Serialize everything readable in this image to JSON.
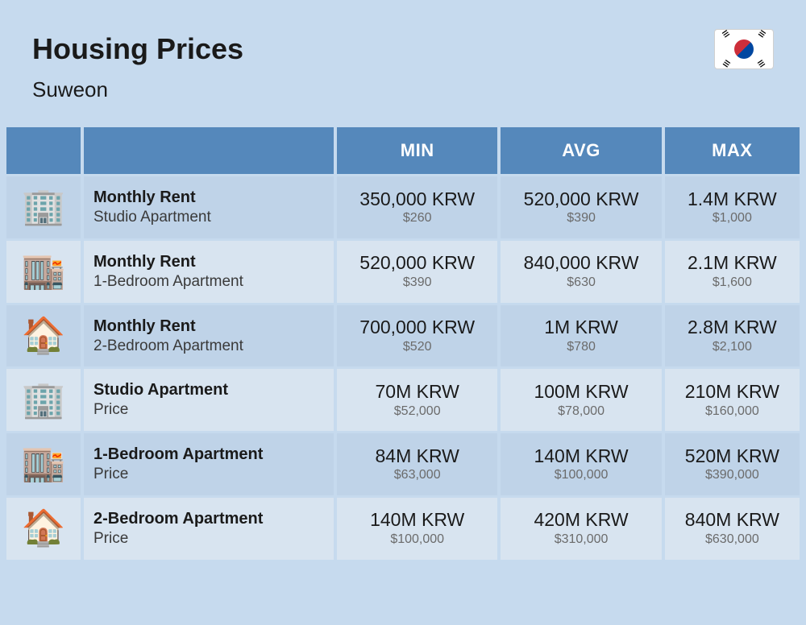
{
  "header": {
    "title": "Housing Prices",
    "subtitle": "Suweon",
    "country": "South Korea"
  },
  "table": {
    "columns": [
      "MIN",
      "AVG",
      "MAX"
    ],
    "rows": [
      {
        "icon": "studio",
        "title": "Monthly Rent",
        "subtitle": "Studio Apartment",
        "min": {
          "krw": "350,000 KRW",
          "usd": "$260"
        },
        "avg": {
          "krw": "520,000 KRW",
          "usd": "$390"
        },
        "max": {
          "krw": "1.4M KRW",
          "usd": "$1,000"
        }
      },
      {
        "icon": "onebed",
        "title": "Monthly Rent",
        "subtitle": "1-Bedroom Apartment",
        "min": {
          "krw": "520,000 KRW",
          "usd": "$390"
        },
        "avg": {
          "krw": "840,000 KRW",
          "usd": "$630"
        },
        "max": {
          "krw": "2.1M KRW",
          "usd": "$1,600"
        }
      },
      {
        "icon": "twobed",
        "title": "Monthly Rent",
        "subtitle": "2-Bedroom Apartment",
        "min": {
          "krw": "700,000 KRW",
          "usd": "$520"
        },
        "avg": {
          "krw": "1M KRW",
          "usd": "$780"
        },
        "max": {
          "krw": "2.8M KRW",
          "usd": "$2,100"
        }
      },
      {
        "icon": "studio",
        "title": "Studio Apartment",
        "subtitle": "Price",
        "min": {
          "krw": "70M KRW",
          "usd": "$52,000"
        },
        "avg": {
          "krw": "100M KRW",
          "usd": "$78,000"
        },
        "max": {
          "krw": "210M KRW",
          "usd": "$160,000"
        }
      },
      {
        "icon": "onebed",
        "title": "1-Bedroom Apartment",
        "subtitle": "Price",
        "min": {
          "krw": "84M KRW",
          "usd": "$63,000"
        },
        "avg": {
          "krw": "140M KRW",
          "usd": "$100,000"
        },
        "max": {
          "krw": "520M KRW",
          "usd": "$390,000"
        }
      },
      {
        "icon": "twobed",
        "title": "2-Bedroom Apartment",
        "subtitle": "Price",
        "min": {
          "krw": "140M KRW",
          "usd": "$100,000"
        },
        "avg": {
          "krw": "420M KRW",
          "usd": "$310,000"
        },
        "max": {
          "krw": "840M KRW",
          "usd": "$630,000"
        }
      }
    ]
  },
  "colors": {
    "page_bg": "#c6daee",
    "header_cell_bg": "#5588bb",
    "header_cell_text": "#ffffff",
    "row_odd_bg": "#bfd3e8",
    "row_even_bg": "#d8e4f0",
    "text_primary": "#1a1a1a",
    "text_secondary": "#6b6b6b"
  },
  "icons": {
    "studio": "🏢",
    "onebed": "🏬",
    "twobed": "🏠"
  }
}
